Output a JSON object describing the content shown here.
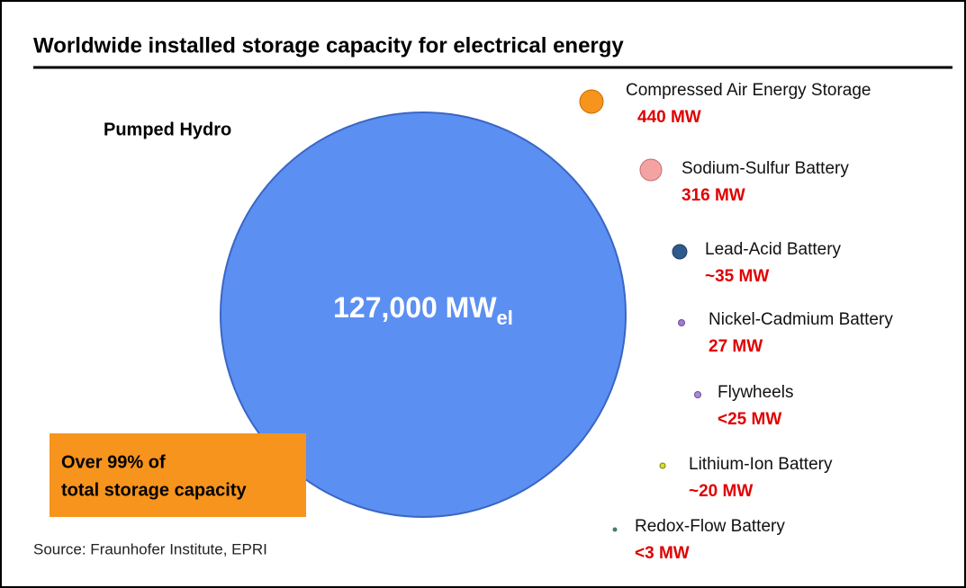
{
  "header": {
    "title": "Worldwide installed storage capacity for electrical energy"
  },
  "main": {
    "label": "Pumped Hydro",
    "value": "127,000 MW",
    "unit_sub": "el",
    "note_line1": "Over 99% of",
    "note_line2": "total storage capacity"
  },
  "items": [
    {
      "label": "Compressed Air Energy Storage",
      "value": "440 MW"
    },
    {
      "label": "Sodium-Sulfur Battery",
      "value": "316 MW"
    },
    {
      "label": "Lead-Acid Battery",
      "value": "~35 MW"
    },
    {
      "label": "Nickel-Cadmium Battery",
      "value": "27 MW"
    },
    {
      "label": "Flywheels",
      "value": "<25 MW"
    },
    {
      "label": "Lithium-Ion Battery",
      "value": "~20 MW"
    },
    {
      "label": "Redox-Flow Battery",
      "value": "<3 MW"
    }
  ],
  "footer": {
    "source": "Source: Fraunhofer Institute, EPRI"
  }
}
